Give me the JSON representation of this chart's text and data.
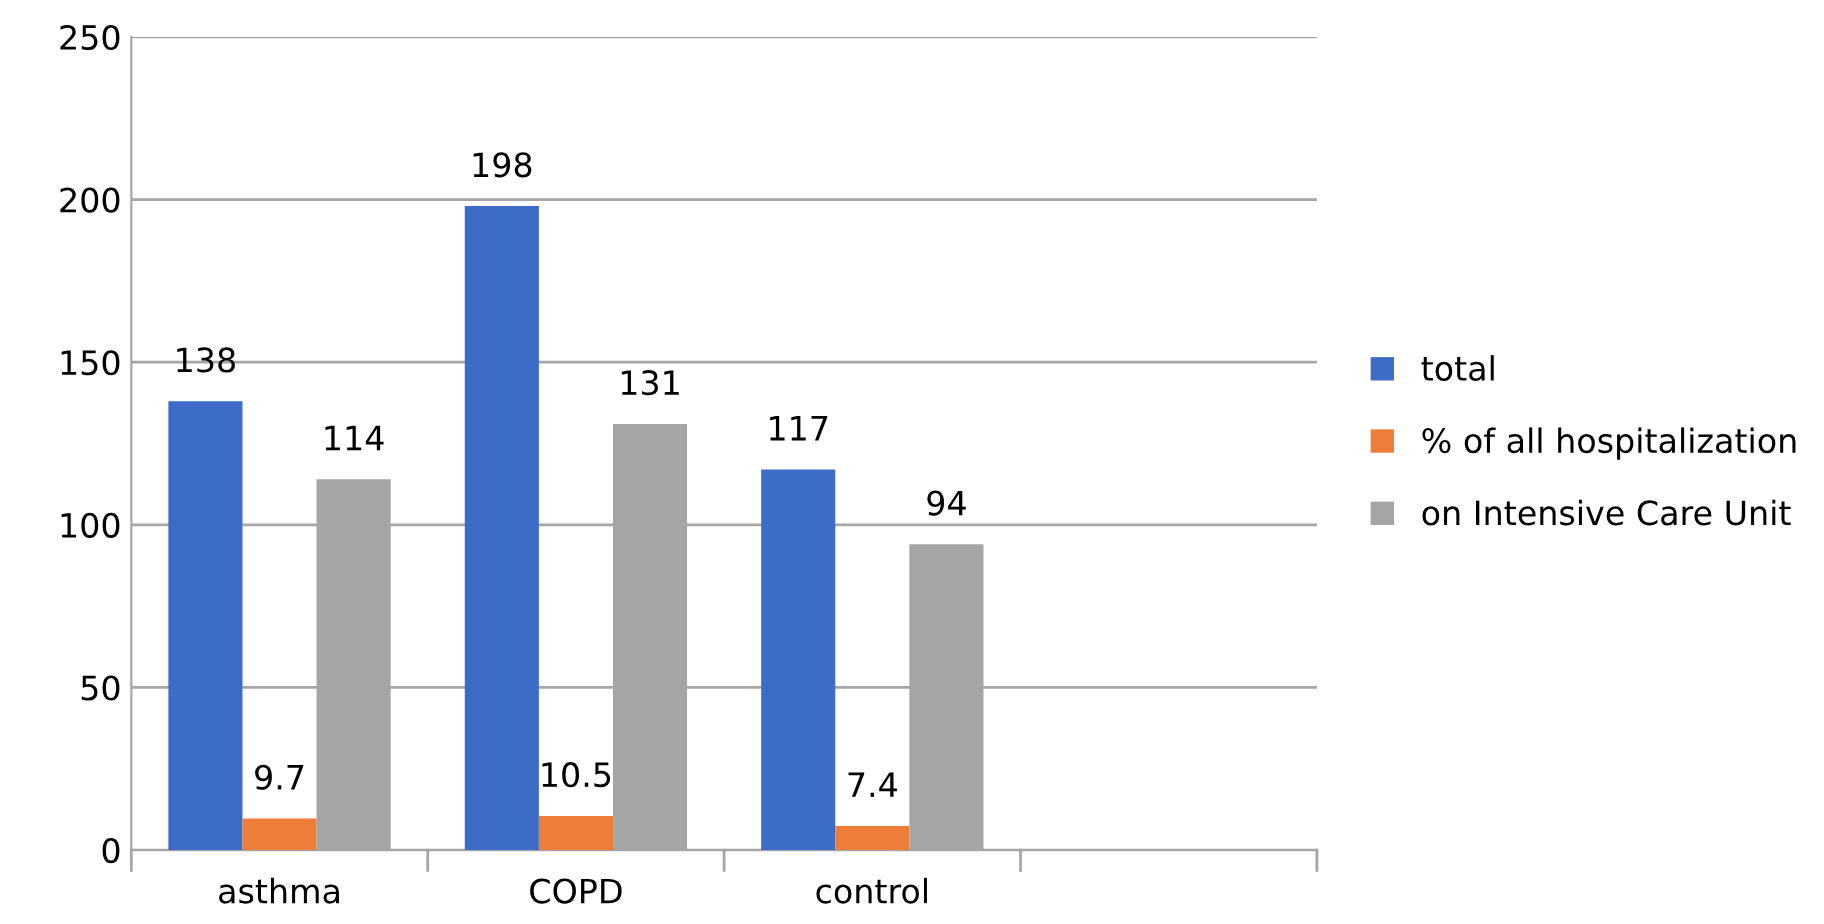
{
  "chart_data": {
    "type": "bar",
    "categories": [
      "asthma",
      "COPD",
      "control",
      null
    ],
    "series": [
      {
        "name": "total",
        "color": "#3d6cc8",
        "values": [
          138,
          198,
          117,
          null
        ]
      },
      {
        "name": "% of all hospitalization",
        "color": "#ee7d3a",
        "values": [
          9.7,
          10.5,
          7.4,
          null
        ]
      },
      {
        "name": "on Intensive Care Unit",
        "color": "#a5a5a5",
        "values": [
          114,
          131,
          94,
          null
        ]
      }
    ],
    "ylim": [
      0,
      250
    ],
    "yticks": [
      0,
      50,
      100,
      150,
      200,
      250
    ],
    "grid": "y",
    "legend": "right",
    "data_labels": true
  }
}
